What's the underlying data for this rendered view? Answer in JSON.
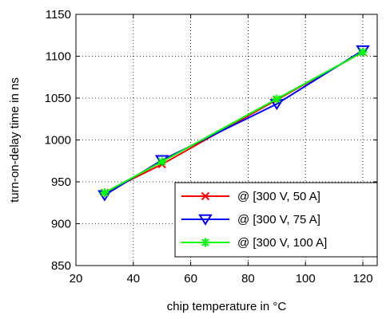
{
  "chart_data": {
    "type": "line",
    "title": "",
    "xlabel": "chip temperature in °C",
    "ylabel": "turn-on-delay time in ns",
    "xlim": [
      20,
      125
    ],
    "ylim": [
      850,
      1150
    ],
    "xticks": [
      20,
      40,
      60,
      80,
      100,
      120
    ],
    "yticks": [
      850,
      900,
      950,
      1000,
      1050,
      1100,
      1150
    ],
    "grid": true,
    "legend_position": "bottom-right",
    "x": [
      30,
      50,
      90,
      120
    ],
    "series": [
      {
        "name": "@ [300 V, 50 A]",
        "values": [
          937,
          971,
          1048,
          1105
        ],
        "color": "#ff0000",
        "marker": "x"
      },
      {
        "name": "@ [300 V, 75 A]",
        "values": [
          934,
          976,
          1043,
          1107
        ],
        "color": "#0000ff",
        "marker": "triangle-down"
      },
      {
        "name": "@ [300 V, 100 A]",
        "values": [
          937,
          974,
          1049,
          1105
        ],
        "color": "#00ff00",
        "marker": "asterisk"
      }
    ]
  }
}
